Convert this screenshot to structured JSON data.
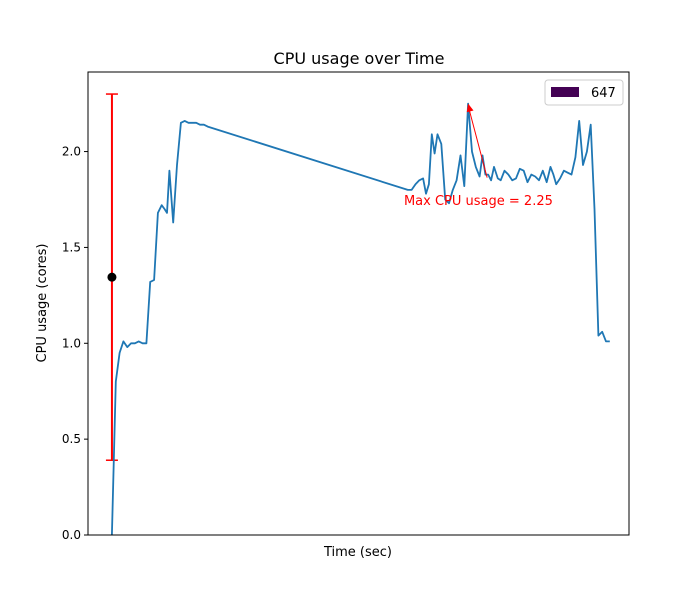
{
  "chart_data": {
    "type": "line",
    "title": "CPU usage over Time",
    "xlabel": "Time (sec)",
    "ylabel": "CPU usage (cores)",
    "ylim": [
      0.0,
      2.415
    ],
    "xlim": [
      -0.05,
      1.08
    ],
    "yticks": [
      0.0,
      0.5,
      1.0,
      1.5,
      2.0
    ],
    "ytick_labels": [
      "0.0",
      "0.5",
      "1.0",
      "1.5",
      "2.0"
    ],
    "grid": false,
    "legend": {
      "placement": "top-right",
      "entries": [
        {
          "label": "647",
          "color": "#440154"
        }
      ]
    },
    "series": [
      {
        "color": "#1f77b4",
        "x": [
          0.0,
          0.008,
          0.016,
          0.024,
          0.032,
          0.04,
          0.048,
          0.056,
          0.064,
          0.072,
          0.08,
          0.088,
          0.096,
          0.104,
          0.11,
          0.115,
          0.12,
          0.128,
          0.136,
          0.144,
          0.152,
          0.16,
          0.168,
          0.176,
          0.184,
          0.192,
          0.2,
          0.618,
          0.626,
          0.634,
          0.642,
          0.65,
          0.656,
          0.662,
          0.668,
          0.674,
          0.68,
          0.688,
          0.696,
          0.704,
          0.712,
          0.72,
          0.728,
          0.736,
          0.744,
          0.752,
          0.76,
          0.768,
          0.774,
          0.78,
          0.786,
          0.792,
          0.798,
          0.806,
          0.812,
          0.82,
          0.828,
          0.836,
          0.844,
          0.852,
          0.86,
          0.868,
          0.876,
          0.884,
          0.892,
          0.9,
          0.908,
          0.916,
          0.922,
          0.928,
          0.936,
          0.944,
          0.952,
          0.96,
          0.968,
          0.976,
          0.984,
          0.992,
          1.0,
          1.008,
          1.016,
          1.024,
          1.032,
          1.04
        ],
        "y": [
          0.0,
          0.8,
          0.95,
          1.01,
          0.98,
          1.0,
          1.0,
          1.01,
          1.0,
          1.0,
          1.32,
          1.33,
          1.68,
          1.72,
          1.7,
          1.68,
          1.9,
          1.63,
          1.93,
          2.15,
          2.16,
          2.15,
          2.15,
          2.15,
          2.14,
          2.14,
          2.13,
          1.8,
          1.8,
          1.83,
          1.85,
          1.86,
          1.78,
          1.83,
          2.09,
          1.99,
          2.09,
          2.04,
          1.75,
          1.73,
          1.8,
          1.85,
          1.98,
          1.82,
          2.25,
          2.0,
          1.92,
          1.87,
          1.98,
          1.88,
          1.88,
          1.85,
          1.92,
          1.86,
          1.85,
          1.9,
          1.88,
          1.85,
          1.86,
          1.91,
          1.9,
          1.84,
          1.88,
          1.87,
          1.85,
          1.9,
          1.84,
          1.92,
          1.88,
          1.83,
          1.86,
          1.9,
          1.89,
          1.88,
          1.97,
          2.16,
          1.93,
          2.0,
          2.14,
          1.7,
          1.04,
          1.06,
          1.01,
          1.01
        ]
      }
    ],
    "error_bar": {
      "x": 0.0,
      "y": 1.345,
      "ymin": 0.39,
      "ymax": 2.3,
      "color": "#ff0000",
      "marker_color": "#000000"
    },
    "annotation": {
      "text": "Max CPU usage = 2.25",
      "color": "#ff0000",
      "point": {
        "x": 0.744,
        "y": 2.25
      },
      "text_pos": {
        "x": 0.61,
        "y": 1.72
      }
    }
  }
}
